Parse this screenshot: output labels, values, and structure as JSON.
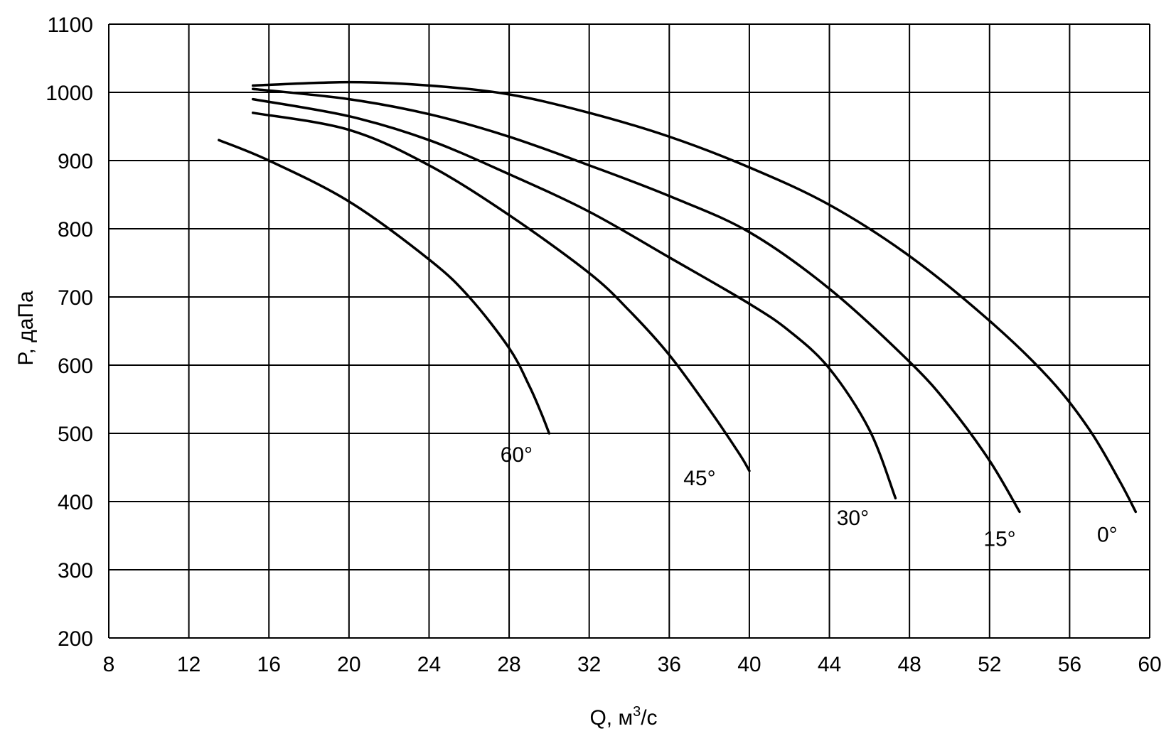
{
  "chart_data": {
    "type": "line",
    "xlabel": "Q, м",
    "xlabel_sup": "3",
    "xlabel_suffix": "/с",
    "ylabel": "P, даПа",
    "xlim": [
      8,
      60
    ],
    "ylim": [
      200,
      1100
    ],
    "xticks": [
      "8",
      "12",
      "16",
      "20",
      "24",
      "28",
      "32",
      "36",
      "40",
      "44",
      "48",
      "52",
      "56",
      "60"
    ],
    "yticks": [
      "200",
      "300",
      "400",
      "500",
      "600",
      "700",
      "800",
      "900",
      "1000",
      "1100"
    ],
    "grid": true,
    "series": [
      {
        "name": "0°",
        "points": [
          [
            15.2,
            1010
          ],
          [
            20,
            1015
          ],
          [
            24,
            1010
          ],
          [
            28,
            997
          ],
          [
            32,
            970
          ],
          [
            36,
            935
          ],
          [
            40,
            890
          ],
          [
            44,
            835
          ],
          [
            48,
            760
          ],
          [
            52,
            665
          ],
          [
            55,
            580
          ],
          [
            57,
            505
          ],
          [
            58.5,
            430
          ],
          [
            59.3,
            385
          ]
        ]
      },
      {
        "name": "15°",
        "points": [
          [
            15.2,
            1005
          ],
          [
            20,
            990
          ],
          [
            24,
            968
          ],
          [
            28,
            935
          ],
          [
            32,
            893
          ],
          [
            36,
            848
          ],
          [
            40,
            795
          ],
          [
            44,
            712
          ],
          [
            48,
            605
          ],
          [
            50,
            540
          ],
          [
            52,
            460
          ],
          [
            53.5,
            385
          ]
        ]
      },
      {
        "name": "30°",
        "points": [
          [
            15.2,
            990
          ],
          [
            20,
            965
          ],
          [
            24,
            930
          ],
          [
            28,
            880
          ],
          [
            32,
            825
          ],
          [
            36,
            758
          ],
          [
            40,
            690
          ],
          [
            42,
            650
          ],
          [
            44,
            595
          ],
          [
            46,
            505
          ],
          [
            47.3,
            405
          ]
        ]
      },
      {
        "name": "45°",
        "points": [
          [
            15.2,
            970
          ],
          [
            20,
            945
          ],
          [
            24,
            893
          ],
          [
            28,
            820
          ],
          [
            32,
            735
          ],
          [
            34,
            680
          ],
          [
            36,
            615
          ],
          [
            38,
            535
          ],
          [
            39.5,
            470
          ],
          [
            40,
            445
          ]
        ]
      },
      {
        "name": "60°",
        "points": [
          [
            13.5,
            930
          ],
          [
            16,
            900
          ],
          [
            20,
            840
          ],
          [
            24,
            755
          ],
          [
            26,
            700
          ],
          [
            28,
            625
          ],
          [
            29,
            570
          ],
          [
            29.6,
            530
          ],
          [
            30,
            500
          ]
        ]
      }
    ]
  }
}
